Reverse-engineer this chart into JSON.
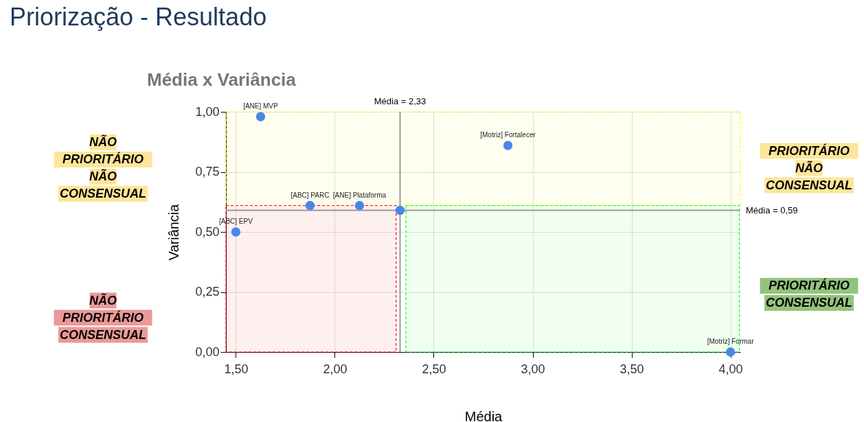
{
  "chart_data": {
    "type": "scatter",
    "title": "Priorização - Resultado",
    "subtitle": "Média x Variância",
    "xlabel": "Média",
    "ylabel": "Variância",
    "x": [
      1.625,
      2.875,
      1.875,
      2.125,
      2.33,
      1.5,
      4.0
    ],
    "values": [
      0.98,
      0.86,
      0.61,
      0.61,
      0.59,
      0.5,
      0.0
    ],
    "color": "#4a86e8",
    "marker": "circle",
    "grid": true,
    "xlim": [
      1.45,
      4.05
    ],
    "ylim": [
      0,
      1.0
    ],
    "xticks": [
      {
        "value": 1.5,
        "label": "1,50"
      },
      {
        "value": 2.0,
        "label": "2,00"
      },
      {
        "value": 2.5,
        "label": "2,50"
      },
      {
        "value": 3.0,
        "label": "3,00"
      },
      {
        "value": 3.5,
        "label": "3,50"
      },
      {
        "value": 4.0,
        "label": "4,00"
      }
    ],
    "yticks": [
      {
        "value": 0,
        "label": "0,00"
      },
      {
        "value": 0.25,
        "label": "0,25"
      },
      {
        "value": 0.5,
        "label": "0,50"
      },
      {
        "value": 0.75,
        "label": "0,75"
      },
      {
        "value": 1.0,
        "label": "1,00"
      }
    ],
    "ref_lines": [
      {
        "axis": "x",
        "value": 2.33,
        "label": "Média = 2,33",
        "color": "#999999"
      },
      {
        "axis": "y",
        "value": 0.59,
        "label": "Média = 0,59",
        "color": "#999999"
      }
    ],
    "bands": [
      {
        "axis": "y",
        "from": 0.61,
        "to": 1.0,
        "color": "#ffff00"
      },
      {
        "axis": "x",
        "from": 1.45,
        "to": 2.31,
        "color": "#ff0000"
      },
      {
        "axis": "x",
        "from": 2.36,
        "to": 4.045,
        "color": "#00ff00"
      }
    ],
    "annotations": [
      {
        "text": "[ANE] MVP",
        "x": 1.625,
        "y": 0.98
      },
      {
        "text": "[Motriz] Fortalecer",
        "x": 2.875,
        "y": 0.86
      },
      {
        "text": "[ABC] PARC",
        "x": 1.875,
        "y": 0.61
      },
      {
        "text": "[ANE] Plataforma",
        "x": 2.125,
        "y": 0.61
      },
      {
        "text": "[ABC] EPV",
        "x": 1.5,
        "y": 0.5
      },
      {
        "text": "[Motriz] Formar",
        "x": 4.0,
        "y": 0.0
      },
      "NÃO PRIORITÁRIO NÃO CONSENSUAL",
      "PRIORITÁRIO NÃO CONSENSUAL",
      "NÃO PRIORITÁRIO CONSENSUAL",
      "PRIORITÁRIO CONSENSUAL"
    ]
  }
}
